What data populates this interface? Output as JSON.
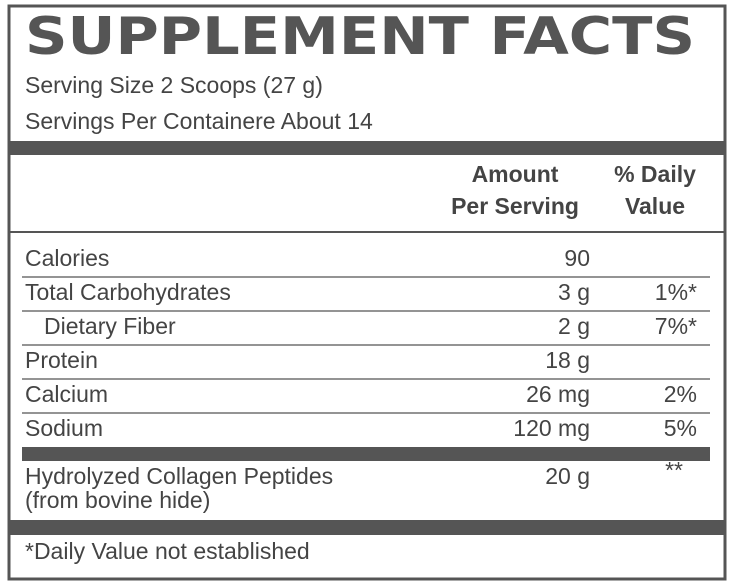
{
  "header": {
    "title": "SUPPLEMENT FACTS",
    "serving_size": "Serving Size 2 Scoops (27 g)",
    "servings_per_container": "Servings Per Containere About 14"
  },
  "table": {
    "columns": [
      [
        "Amount",
        "Per Serving"
      ],
      [
        "% Daily",
        "Value"
      ]
    ],
    "rows": [
      {
        "name": "Calories",
        "amount": "90",
        "daily_value": null
      },
      {
        "name": "Total Carbohydrates",
        "amount": "3 g",
        "daily_value": "1%*"
      },
      {
        "name": "Dietary Fiber",
        "amount": "2 g",
        "daily_value": "7%*",
        "indent": true
      },
      {
        "name": "Protein",
        "amount": "18 g",
        "daily_value": null
      },
      {
        "name": "Calcium",
        "amount": "26 mg",
        "daily_value": "2%"
      },
      {
        "name": "Sodium",
        "amount": "120 mg",
        "daily_value": "5%"
      }
    ],
    "special": {
      "name": "Hydrolyzed Collagen Peptides",
      "note": "(from bovine hide)",
      "amount": "20 g",
      "daily_value": "**"
    }
  },
  "footnote": "*Daily Value not established"
}
